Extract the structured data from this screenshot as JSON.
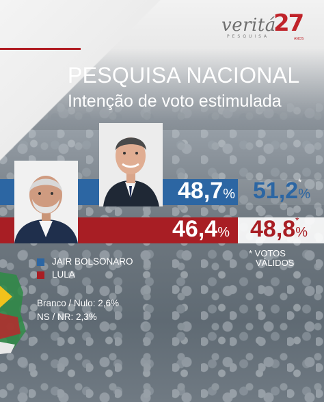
{
  "logo": {
    "word": "veritá",
    "sub": "PESQUISA",
    "number": "27",
    "anos": "ANOS"
  },
  "header": {
    "title": "PESQUISA NACIONAL",
    "subtitle": "Intenção de voto estimulada"
  },
  "colors": {
    "bolsonaro": "#2c66a3",
    "lula": "#a81e24",
    "text": "#ffffff",
    "brand_red": "#c0232a"
  },
  "chart_data": {
    "type": "bar",
    "orientation": "horizontal",
    "title": "PESQUISA NACIONAL",
    "subtitle": "Intenção de voto estimulada",
    "categories": [
      "JAIR BOLSONARO",
      "LULA"
    ],
    "series": [
      {
        "name": "",
        "values": [
          48.7,
          46.4
        ]
      },
      {
        "name": "* VOTOS VÁLIDOS",
        "values": [
          51.2,
          48.8
        ]
      }
    ],
    "labels": {
      "bolsonaro_total": "48,7",
      "lula_total": "46,4",
      "bolsonaro_valid": "51,2",
      "lula_valid": "48,8",
      "percent_sign": "%",
      "asterisk": "*"
    },
    "legend": [
      {
        "label": "JAIR BOLSONARO",
        "color": "#2c66a3"
      },
      {
        "label": "LULA",
        "color": "#a81e24"
      }
    ],
    "legend_position": "bottom-left",
    "note": "* VOTOS VÁLIDOS",
    "annotations": [
      "Branco / Nulo: 2,6%",
      "NS / NR: 2,3%"
    ]
  },
  "legend": {
    "bolsonaro": "JAIR BOLSONARO",
    "lula": "LULA"
  },
  "note": {
    "line1": "* VOTOS",
    "line2": "VÁLIDOS"
  },
  "footer": {
    "blank": "Branco / Nulo: 2,6%",
    "nsnr": "NS / NR: 2,3%"
  }
}
